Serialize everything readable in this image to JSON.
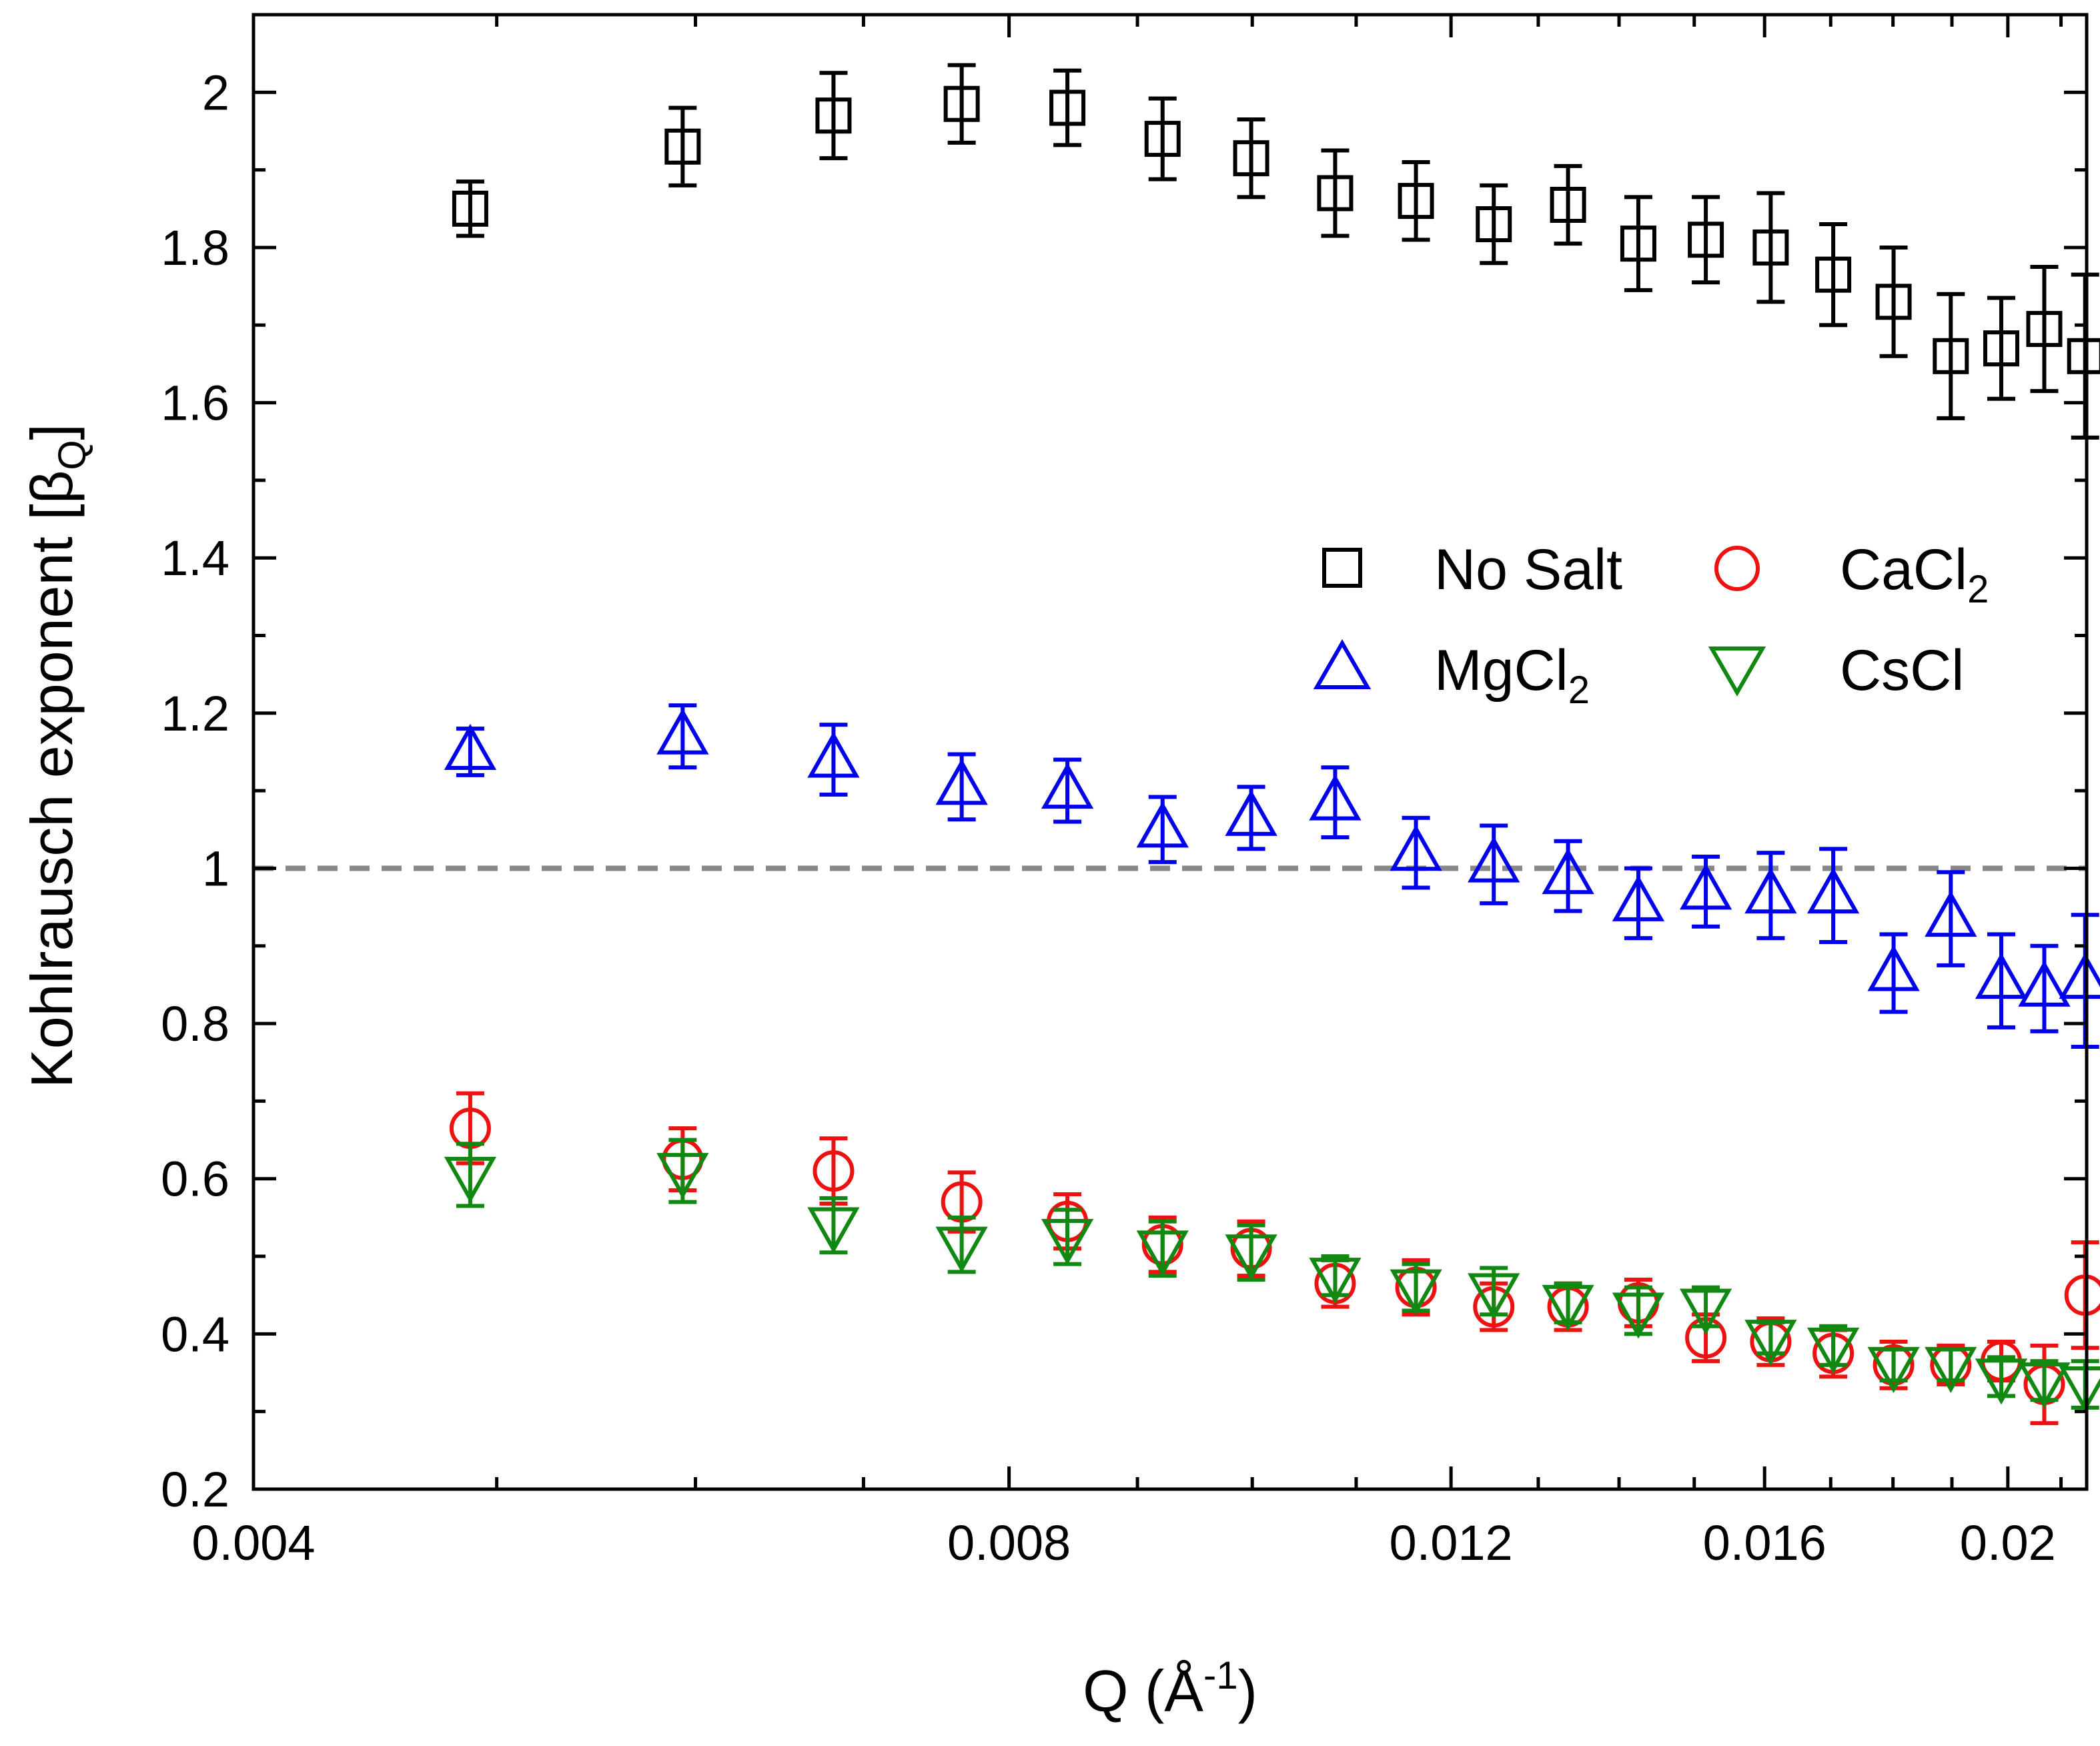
{
  "chart_data": {
    "type": "scatter",
    "title": "",
    "xlabel": {
      "main": "Q (Å",
      "sup": "-1",
      "tail": ")"
    },
    "ylabel": {
      "main": "Kohlrausch exponent [β",
      "sub": "Q",
      "tail": "]"
    },
    "scale": {
      "x": "log",
      "y": "linear"
    },
    "xlim": [
      0.004,
      0.0215
    ],
    "ylim": [
      0.2,
      2.1
    ],
    "xticks": [
      {
        "value": 0.004,
        "label": "0.004"
      },
      {
        "value": 0.008,
        "label": "0.008"
      },
      {
        "value": 0.012,
        "label": "0.012"
      },
      {
        "value": 0.016,
        "label": "0.016"
      },
      {
        "value": 0.02,
        "label": "0.02"
      }
    ],
    "xminor_ticks": [
      0.005,
      0.006,
      0.007,
      0.009,
      0.01,
      0.011,
      0.013,
      0.014,
      0.015,
      0.017,
      0.018,
      0.019,
      0.021
    ],
    "yticks": [
      {
        "value": 0.2,
        "label": "0.2"
      },
      {
        "value": 0.4,
        "label": "0.4"
      },
      {
        "value": 0.6,
        "label": "0.6"
      },
      {
        "value": 0.8,
        "label": "0.8"
      },
      {
        "value": 1.0,
        "label": "1"
      },
      {
        "value": 1.2,
        "label": "1.2"
      },
      {
        "value": 1.4,
        "label": "1.4"
      },
      {
        "value": 1.6,
        "label": "1.6"
      },
      {
        "value": 1.8,
        "label": "1.8"
      },
      {
        "value": 2.0,
        "label": "2"
      }
    ],
    "yminor_ticks": [
      0.3,
      0.5,
      0.7,
      0.9,
      1.1,
      1.3,
      1.5,
      1.7,
      1.9,
      2.1
    ],
    "reference_line": {
      "y": 1.0,
      "style": "dashed",
      "color": "#888888"
    },
    "grid": false,
    "legend_placement": "center-right",
    "x": [
      0.00488,
      0.00593,
      0.00681,
      0.00766,
      0.00844,
      0.00921,
      0.00999,
      0.01079,
      0.01162,
      0.01248,
      0.01336,
      0.01425,
      0.01516,
      0.01609,
      0.01704,
      0.01801,
      0.01898,
      0.01988,
      0.02068,
      0.02147
    ],
    "series": [
      {
        "name": "No Salt",
        "marker": "square",
        "color": "#000000",
        "y": [
          1.85,
          1.93,
          1.97,
          1.985,
          1.98,
          1.94,
          1.915,
          1.87,
          1.86,
          1.83,
          1.855,
          1.805,
          1.81,
          1.8,
          1.765,
          1.73,
          1.66,
          1.67,
          1.695,
          1.66
        ],
        "err": [
          0.035,
          0.05,
          0.055,
          0.05,
          0.048,
          0.052,
          0.05,
          0.055,
          0.05,
          0.05,
          0.05,
          0.06,
          0.055,
          0.07,
          0.065,
          0.07,
          0.08,
          0.065,
          0.08,
          0.105
        ]
      },
      {
        "name": "MgCl",
        "name_sub": "2",
        "marker": "triangle-up",
        "color": "#0000ee",
        "y": [
          1.15,
          1.17,
          1.14,
          1.105,
          1.1,
          1.05,
          1.065,
          1.085,
          1.02,
          1.005,
          0.99,
          0.955,
          0.97,
          0.965,
          0.965,
          0.865,
          0.935,
          0.855,
          0.845,
          0.855
        ],
        "err": [
          0.03,
          0.04,
          0.045,
          0.042,
          0.04,
          0.042,
          0.04,
          0.045,
          0.045,
          0.05,
          0.045,
          0.045,
          0.045,
          0.055,
          0.06,
          0.05,
          0.06,
          0.06,
          0.055,
          0.085
        ]
      },
      {
        "name": "CaCl",
        "name_sub": "2",
        "marker": "circle",
        "color": "#ee1111",
        "y": [
          0.665,
          0.625,
          0.61,
          0.57,
          0.545,
          0.515,
          0.51,
          0.465,
          0.46,
          0.435,
          0.435,
          0.44,
          0.395,
          0.39,
          0.375,
          0.36,
          0.36,
          0.365,
          0.335,
          0.45
        ],
        "err": [
          0.045,
          0.04,
          0.042,
          0.038,
          0.035,
          0.035,
          0.035,
          0.03,
          0.035,
          0.03,
          0.03,
          0.03,
          0.03,
          0.03,
          0.03,
          0.03,
          0.025,
          0.025,
          0.05,
          0.068
        ]
      },
      {
        "name": "CsCl",
        "marker": "triangle-down",
        "color": "#118811",
        "y": [
          0.605,
          0.61,
          0.54,
          0.515,
          0.525,
          0.51,
          0.505,
          0.475,
          0.46,
          0.455,
          0.44,
          0.43,
          0.435,
          0.395,
          0.385,
          0.36,
          0.36,
          0.345,
          0.34,
          0.335
        ],
        "err": [
          0.04,
          0.04,
          0.035,
          0.035,
          0.035,
          0.035,
          0.035,
          0.025,
          0.03,
          0.03,
          0.025,
          0.03,
          0.025,
          0.02,
          0.025,
          0.02,
          0.02,
          0.025,
          0.025,
          0.03
        ]
      }
    ]
  }
}
